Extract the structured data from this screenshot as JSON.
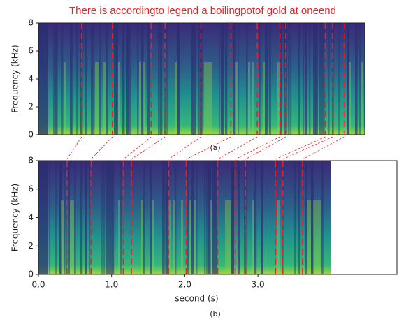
{
  "chart_data": [
    {
      "type": "spectrogram",
      "title": "There  is  accordingto legend  a  boilingpotof  gold at oneend",
      "caption": "(a)",
      "ylabel": "Frequency (kHz)",
      "xlim": [
        0,
        4.46
      ],
      "ylim": [
        0,
        8
      ],
      "yticks": [
        0,
        2,
        4,
        6,
        8
      ],
      "boundary_color": "#e8202a",
      "boundaries": [
        0.59,
        1.01,
        1.54,
        1.73,
        2.22,
        2.63,
        2.99,
        3.3,
        3.38,
        3.92,
        4.02,
        4.18
      ]
    },
    {
      "type": "spectrogram",
      "caption": "(b)",
      "ylabel": "Frequency (kHz)",
      "xlabel": "second (s)",
      "xlim": [
        0,
        4.9
      ],
      "ylim": [
        0,
        8
      ],
      "duration": 4.0,
      "xticks": [
        {
          "value": 0,
          "label": "0.0"
        },
        {
          "value": 1,
          "label": "1.0"
        },
        {
          "value": 2,
          "label": "2.0"
        },
        {
          "value": 3,
          "label": "3.0"
        }
      ],
      "yticks": [
        0,
        2,
        4,
        6,
        8
      ],
      "boundary_color": "#e8202a",
      "boundaries": [
        0.39,
        0.72,
        1.16,
        1.27,
        1.78,
        2.02,
        2.45,
        2.69,
        2.83,
        3.24,
        3.34,
        3.61
      ]
    }
  ]
}
